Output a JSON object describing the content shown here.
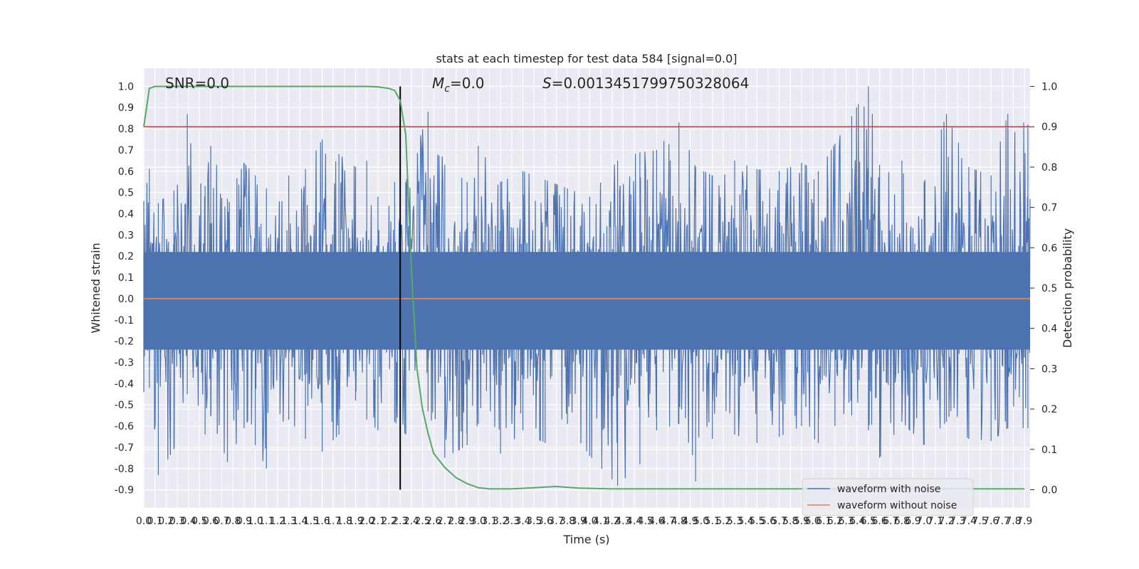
{
  "chart_data": {
    "type": "line",
    "title": "stats at each timestep for test data 584 [signal=0.0]",
    "xlabel": "Time (s)",
    "ylabel": "Whitened strain",
    "ylabel_right": "Detection probability",
    "xlim": [
      0.0,
      7.95
    ],
    "ylim_left": [
      -0.985,
      1.085
    ],
    "ylim_right": [
      -0.045,
      1.045
    ],
    "grid": true,
    "x_ticks": [
      "0.0",
      "0.1",
      "0.2",
      "0.3",
      "0.4",
      "0.5",
      "0.6",
      "0.7",
      "0.8",
      "0.9",
      "1.0",
      "1.1",
      "1.2",
      "1.3",
      "1.4",
      "1.5",
      "1.6",
      "1.7",
      "1.8",
      "1.9",
      "2.0",
      "2.1",
      "2.2",
      "2.3",
      "2.4",
      "2.5",
      "2.6",
      "2.7",
      "2.8",
      "2.9",
      "3.0",
      "3.1",
      "3.2",
      "3.3",
      "3.4",
      "3.5",
      "3.6",
      "3.7",
      "3.8",
      "3.9",
      "4.0",
      "4.1",
      "4.2",
      "4.3",
      "4.4",
      "4.5",
      "4.6",
      "4.7",
      "4.8",
      "4.9",
      "5.0",
      "5.1",
      "5.2",
      "5.3",
      "5.4",
      "5.5",
      "5.6",
      "5.7",
      "5.8",
      "5.9",
      "6.0",
      "6.1",
      "6.2",
      "6.3",
      "6.4",
      "6.5",
      "6.6",
      "6.7",
      "6.8",
      "6.9",
      "7.0",
      "7.1",
      "7.2",
      "7.3",
      "7.4",
      "7.5",
      "7.6",
      "7.7",
      "7.8",
      "7.9"
    ],
    "y_ticks_left": [
      "1.0",
      "0.9",
      "0.8",
      "0.7",
      "0.6",
      "0.5",
      "0.4",
      "0.3",
      "0.2",
      "0.1",
      "0.0",
      "-0.1",
      "-0.2",
      "-0.3",
      "-0.4",
      "-0.5",
      "-0.6",
      "-0.7",
      "-0.8",
      "-0.9"
    ],
    "y_ticks_right": [
      "1.0",
      "0.9",
      "0.8",
      "0.7",
      "0.6",
      "0.5",
      "0.4",
      "0.3",
      "0.2",
      "0.1",
      "0.0"
    ],
    "annotations": {
      "snr": "SNR=0.0",
      "mc_symbol": "M",
      "mc_sub": "c",
      "mc_value": "=0.0",
      "s_symbol": "S",
      "s_value": "=0.0013451799750328064"
    },
    "series": [
      {
        "name": "waveform with noise",
        "color": "#4c72b0",
        "note_style": "dense noise",
        "envelope_peaks": [
          [
            0.0,
            0.46,
            -0.44
          ],
          [
            0.05,
            0.61,
            -0.42
          ],
          [
            0.13,
            0.45,
            -0.83
          ],
          [
            0.27,
            0.51,
            -0.71
          ],
          [
            0.39,
            0.87,
            -0.45
          ],
          [
            0.55,
            0.53,
            -0.64
          ],
          [
            0.6,
            0.72,
            -0.55
          ],
          [
            0.75,
            0.47,
            -0.77
          ],
          [
            0.9,
            0.64,
            -0.61
          ],
          [
            1.0,
            0.58,
            -0.69
          ],
          [
            1.1,
            0.52,
            -0.8
          ],
          [
            1.3,
            0.58,
            -0.57
          ],
          [
            1.45,
            0.61,
            -0.66
          ],
          [
            1.6,
            0.75,
            -0.72
          ],
          [
            1.75,
            0.68,
            -0.64
          ],
          [
            1.9,
            0.62,
            -0.48
          ],
          [
            2.0,
            0.65,
            -0.57
          ],
          [
            2.1,
            0.48,
            -0.62
          ],
          [
            2.25,
            0.55,
            -0.58
          ],
          [
            2.35,
            0.55,
            -0.64
          ],
          [
            2.55,
            0.88,
            -0.53
          ],
          [
            2.7,
            0.63,
            -0.75
          ],
          [
            2.9,
            0.55,
            -0.69
          ],
          [
            3.0,
            0.72,
            -0.59
          ],
          [
            3.2,
            0.55,
            -0.73
          ],
          [
            3.4,
            0.6,
            -0.62
          ],
          [
            3.6,
            0.56,
            -0.68
          ],
          [
            3.8,
            0.52,
            -0.59
          ],
          [
            4.0,
            0.48,
            -0.74
          ],
          [
            4.25,
            0.65,
            -0.88
          ],
          [
            4.45,
            0.69,
            -0.78
          ],
          [
            4.6,
            0.7,
            -0.62
          ],
          [
            4.8,
            0.83,
            -0.59
          ],
          [
            4.95,
            0.62,
            -0.86
          ],
          [
            5.1,
            0.58,
            -0.66
          ],
          [
            5.3,
            0.65,
            -0.64
          ],
          [
            5.5,
            0.61,
            -0.68
          ],
          [
            5.7,
            0.6,
            -0.65
          ],
          [
            5.9,
            0.64,
            -0.6
          ],
          [
            6.05,
            0.6,
            -0.68
          ],
          [
            6.2,
            0.73,
            -0.6
          ],
          [
            6.35,
            0.86,
            -0.55
          ],
          [
            6.5,
            1.0,
            -0.62
          ],
          [
            6.6,
            0.63,
            -0.75
          ],
          [
            6.8,
            0.65,
            -0.58
          ],
          [
            7.0,
            0.55,
            -0.69
          ],
          [
            7.2,
            0.87,
            -0.58
          ],
          [
            7.4,
            0.62,
            -0.66
          ],
          [
            7.6,
            0.58,
            -0.67
          ],
          [
            7.75,
            0.87,
            -0.61
          ],
          [
            7.93,
            0.82,
            -0.61
          ]
        ]
      },
      {
        "name": "waveform without noise",
        "color": "#dd8452",
        "constant_value": 0.0
      },
      {
        "name": "",
        "axis": "right",
        "color": "#55a868",
        "x": [
          0.0,
          0.05,
          0.1,
          0.2,
          0.5,
          1.0,
          1.5,
          2.0,
          2.1,
          2.2,
          2.25,
          2.3,
          2.35,
          2.4,
          2.45,
          2.5,
          2.55,
          2.6,
          2.7,
          2.8,
          2.9,
          3.0,
          3.1,
          3.3,
          3.5,
          3.7,
          3.9,
          4.2,
          5.0,
          6.0,
          7.0,
          7.9
        ],
        "y": [
          0.9,
          0.995,
          1.0,
          1.0,
          1.0,
          1.0,
          1.0,
          1.0,
          0.999,
          0.995,
          0.99,
          0.965,
          0.88,
          0.55,
          0.3,
          0.2,
          0.14,
          0.09,
          0.055,
          0.03,
          0.015,
          0.005,
          0.002,
          0.002,
          0.005,
          0.008,
          0.004,
          0.002,
          0.002,
          0.002,
          0.002,
          0.002
        ]
      }
    ],
    "threshold_right": 0.9,
    "threshold_color": "#c44e52",
    "vline_x": 2.3,
    "vline_color": "#000000",
    "legend_position": "bottom-right"
  }
}
